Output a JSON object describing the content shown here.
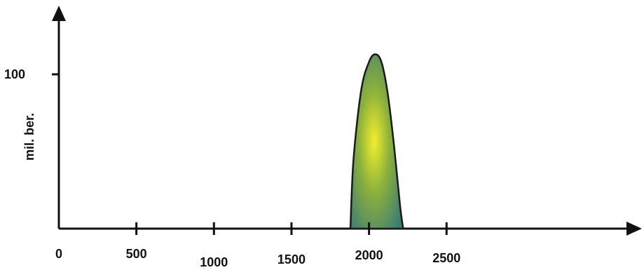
{
  "chart_data": {
    "type": "area",
    "title": "",
    "xlabel": "",
    "ylabel": "mil. ber.",
    "xlim": [
      0,
      3000
    ],
    "ylim": [
      0,
      130
    ],
    "x_ticks": [
      0,
      500,
      1000,
      1500,
      2000,
      2500
    ],
    "x_tick_labels": [
      "0",
      "500",
      "1000",
      "1500",
      "2000",
      "2500"
    ],
    "y_ticks": [
      100
    ],
    "y_tick_labels": [
      "100"
    ],
    "grid": false,
    "legend": "none",
    "series": [
      {
        "x": [
          1880,
          1900,
          1950,
          2000,
          2040,
          2080,
          2120,
          2160,
          2200,
          2220
        ],
        "y": [
          0,
          45,
          90,
          108,
          113,
          108,
          88,
          55,
          15,
          0
        ]
      }
    ],
    "colors": {
      "axis": "#111111",
      "fill_center": "#f2ee2e",
      "fill_mid": "#8cb13b",
      "fill_edge": "#3f7d74",
      "outline": "#1a1a1a"
    }
  }
}
